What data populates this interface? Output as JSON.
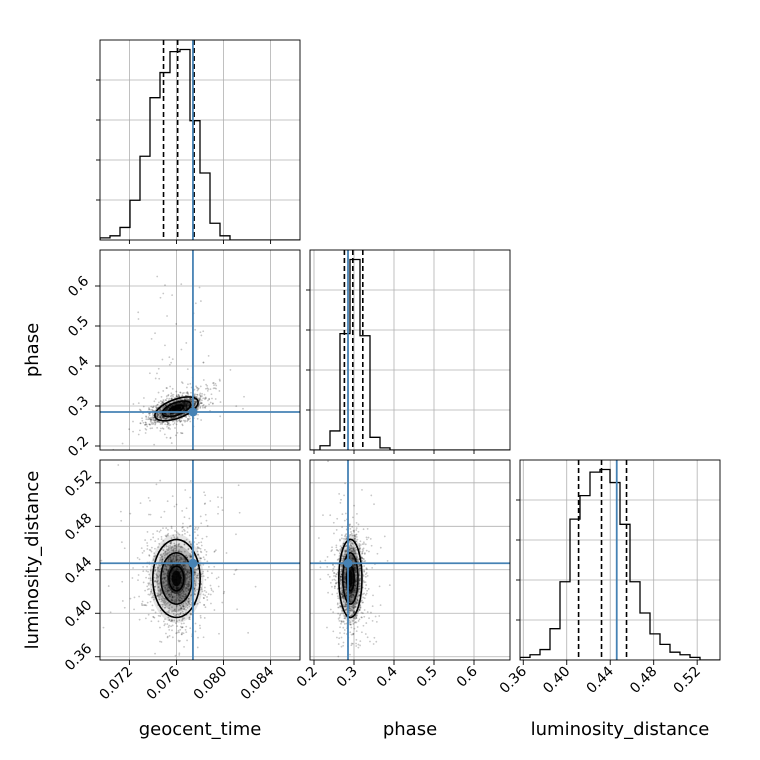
{
  "chart_data": {
    "type": "corner",
    "parameters": [
      "geocent_time",
      "phase",
      "luminosity_distance"
    ],
    "axes": {
      "geocent_time": {
        "range": [
          0.0695,
          0.0865
        ],
        "ticks": [
          0.072,
          0.076,
          0.08,
          0.084
        ],
        "tick_labels": [
          "0.072",
          "0.076",
          "0.080",
          "0.084"
        ]
      },
      "phase": {
        "range": [
          0.19,
          0.69
        ],
        "ticks": [
          0.2,
          0.3,
          0.4,
          0.5,
          0.6
        ],
        "tick_labels": [
          "0.2",
          "0.3",
          "0.4",
          "0.5",
          "0.6"
        ]
      },
      "luminosity_distance": {
        "range": [
          0.357,
          0.541
        ],
        "ticks": [
          0.36,
          0.4,
          0.44,
          0.48,
          0.52
        ],
        "tick_labels": [
          "0.36",
          "0.40",
          "0.44",
          "0.48",
          "0.52"
        ]
      }
    },
    "truths": {
      "geocent_time": 0.0774,
      "phase": 0.285,
      "luminosity_distance": 0.446
    },
    "truth_color": "#4682b4",
    "histograms": {
      "geocent_time": {
        "edges": [
          0.0695,
          0.07035,
          0.0712,
          0.07205,
          0.0729,
          0.07375,
          0.0746,
          0.07545,
          0.0763,
          0.07715,
          0.078,
          0.07885,
          0.0797,
          0.08055,
          0.0814,
          0.08225,
          0.0831,
          0.08395,
          0.0848,
          0.08565,
          0.0865
        ],
        "counts": [
          1,
          2,
          6,
          19,
          40,
          68,
          80,
          90,
          91,
          57,
          32,
          8,
          2,
          0,
          0,
          0,
          0,
          0,
          0,
          0
        ],
        "quantiles": [
          0.0749,
          0.0761,
          0.0775
        ]
      },
      "phase": {
        "edges": [
          0.19,
          0.215,
          0.24,
          0.265,
          0.29,
          0.315,
          0.34,
          0.365,
          0.39,
          0.415,
          0.44,
          0.465,
          0.49,
          0.515,
          0.54,
          0.565,
          0.59,
          0.615,
          0.64,
          0.665,
          0.69
        ],
        "counts": [
          0,
          2,
          9,
          55,
          90,
          54,
          6,
          1,
          0,
          0,
          0,
          0,
          0,
          0,
          0,
          0,
          0,
          0,
          0,
          0
        ],
        "quantiles": [
          0.276,
          0.297,
          0.322
        ]
      },
      "luminosity_distance": {
        "edges": [
          0.357,
          0.3662,
          0.3754,
          0.3846,
          0.3938,
          0.403,
          0.4122,
          0.4214,
          0.4306,
          0.4398,
          0.449,
          0.4582,
          0.4674,
          0.4766,
          0.4858,
          0.495,
          0.5042,
          0.5134,
          0.5226,
          0.5318,
          0.541
        ],
        "counts": [
          1,
          2,
          4,
          12,
          30,
          54,
          63,
          72,
          73,
          68,
          52,
          30,
          18,
          10,
          6,
          3,
          2,
          1,
          0,
          0
        ],
        "quantiles": [
          0.4109,
          0.432,
          0.455
        ]
      }
    },
    "density_2d": [
      {
        "x": "geocent_time",
        "y": "phase",
        "center": [
          0.076,
          0.293
        ],
        "sigma": [
          0.00105,
          0.017
        ],
        "rho": 0.55,
        "levels": [
          0.5,
          1.0,
          1.5
        ]
      },
      {
        "x": "geocent_time",
        "y": "luminosity_distance",
        "center": [
          0.076,
          0.432
        ],
        "sigma": [
          0.00115,
          0.0205
        ],
        "rho": 0.0,
        "levels": [
          0.5,
          1.0,
          1.5
        ]
      },
      {
        "x": "phase",
        "y": "luminosity_distance",
        "center": [
          0.291,
          0.432
        ],
        "sigma": [
          0.0165,
          0.0205
        ],
        "rho": 0.0,
        "levels": [
          0.5,
          1.0,
          1.5
        ]
      }
    ],
    "grid": true
  }
}
